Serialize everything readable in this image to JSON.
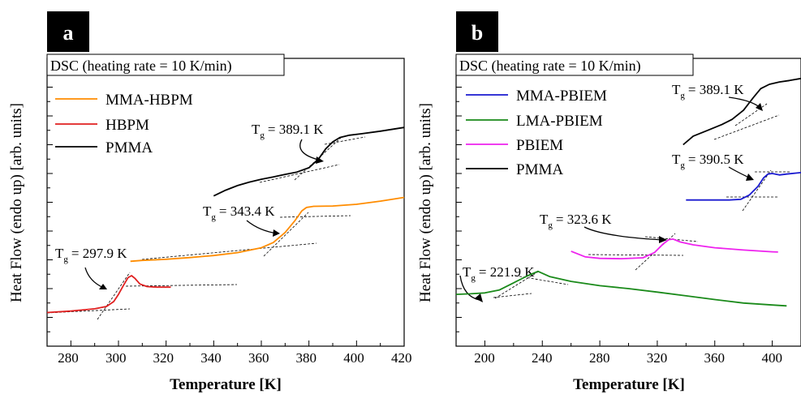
{
  "chart_data": [
    {
      "type": "line",
      "panel_label": "a",
      "box_label": "DSC (heating rate = 10 K/min)",
      "xlabel": "Temperature [K]",
      "ylabel": "Heat Flow (endo up) [arb. units]",
      "xlim": [
        270,
        420
      ],
      "xticks": [
        280,
        300,
        320,
        340,
        360,
        380,
        400,
        420
      ],
      "ylim": [
        0,
        10
      ],
      "legend_position": "top-left",
      "series": [
        {
          "name": "MMA-HBPM",
          "color": "#ff8c00",
          "points": [
            [
              305,
              2.95
            ],
            [
              310,
              2.98
            ],
            [
              320,
              3.02
            ],
            [
              330,
              3.08
            ],
            [
              340,
              3.15
            ],
            [
              350,
              3.25
            ],
            [
              360,
              3.42
            ],
            [
              365,
              3.6
            ],
            [
              370,
              3.95
            ],
            [
              374,
              4.35
            ],
            [
              377,
              4.7
            ],
            [
              379,
              4.82
            ],
            [
              382,
              4.86
            ],
            [
              390,
              4.87
            ],
            [
              400,
              4.93
            ],
            [
              410,
              5.04
            ],
            [
              420,
              5.17
            ]
          ]
        },
        {
          "name": "HBPM",
          "color": "#e02020",
          "points": [
            [
              270,
              1.17
            ],
            [
              280,
              1.22
            ],
            [
              290,
              1.3
            ],
            [
              295,
              1.38
            ],
            [
              298,
              1.55
            ],
            [
              300,
              1.8
            ],
            [
              302,
              2.1
            ],
            [
              304,
              2.38
            ],
            [
              305.5,
              2.45
            ],
            [
              307,
              2.35
            ],
            [
              309,
              2.16
            ],
            [
              312,
              2.07
            ],
            [
              316,
              2.05
            ],
            [
              322,
              2.05
            ]
          ]
        },
        {
          "name": "PMMA",
          "color": "#000000",
          "points": [
            [
              340,
              5.22
            ],
            [
              345,
              5.42
            ],
            [
              350,
              5.58
            ],
            [
              355,
              5.7
            ],
            [
              360,
              5.8
            ],
            [
              365,
              5.88
            ],
            [
              370,
              5.97
            ],
            [
              375,
              6.05
            ],
            [
              380,
              6.2
            ],
            [
              384,
              6.5
            ],
            [
              387,
              6.85
            ],
            [
              390,
              7.1
            ],
            [
              393,
              7.25
            ],
            [
              397,
              7.33
            ],
            [
              402,
              7.38
            ],
            [
              410,
              7.47
            ],
            [
              420,
              7.6
            ]
          ]
        }
      ],
      "annotations": [
        {
          "label": "T",
          "sub": "g",
          "value": "= 297.9 K"
        },
        {
          "label": "T",
          "sub": "g",
          "value": "= 343.4 K"
        },
        {
          "label": "T",
          "sub": "g",
          "value": "= 389.1 K"
        }
      ]
    },
    {
      "type": "line",
      "panel_label": "b",
      "box_label": "DSC (heating rate = 10 K/min)",
      "xlabel": "Temperature [K]",
      "ylabel": "Heat Flow (endo up) [arb. units]",
      "xlim": [
        180,
        420
      ],
      "xticks": [
        200,
        240,
        280,
        320,
        360,
        400
      ],
      "ylim": [
        0,
        10
      ],
      "legend_position": "top-left",
      "series": [
        {
          "name": "MMA-PBIEM",
          "color": "#1a1ad0",
          "points": [
            [
              340,
              5.08
            ],
            [
              360,
              5.08
            ],
            [
              370,
              5.08
            ],
            [
              378,
              5.1
            ],
            [
              384,
              5.25
            ],
            [
              390,
              5.55
            ],
            [
              394,
              5.85
            ],
            [
              397,
              5.98
            ],
            [
              400,
              6.0
            ],
            [
              405,
              5.95
            ],
            [
              410,
              5.98
            ],
            [
              420,
              6.03
            ]
          ]
        },
        {
          "name": "LMA-PBIEM",
          "color": "#1a8a1a",
          "points": [
            [
              180,
              1.8
            ],
            [
              190,
              1.82
            ],
            [
              200,
              1.85
            ],
            [
              210,
              1.95
            ],
            [
              220,
              2.2
            ],
            [
              230,
              2.45
            ],
            [
              237,
              2.6
            ],
            [
              245,
              2.42
            ],
            [
              260,
              2.25
            ],
            [
              280,
              2.1
            ],
            [
              300,
              2.0
            ],
            [
              320,
              1.88
            ],
            [
              340,
              1.75
            ],
            [
              360,
              1.62
            ],
            [
              380,
              1.5
            ],
            [
              400,
              1.43
            ],
            [
              410,
              1.4
            ]
          ]
        },
        {
          "name": "PBIEM",
          "color": "#ee22ee",
          "points": [
            [
              260,
              3.3
            ],
            [
              270,
              3.1
            ],
            [
              280,
              3.05
            ],
            [
              295,
              3.04
            ],
            [
              310,
              3.07
            ],
            [
              318,
              3.25
            ],
            [
              324,
              3.55
            ],
            [
              328,
              3.7
            ],
            [
              331,
              3.72
            ],
            [
              336,
              3.62
            ],
            [
              345,
              3.52
            ],
            [
              360,
              3.42
            ],
            [
              380,
              3.34
            ],
            [
              400,
              3.28
            ],
            [
              404,
              3.27
            ]
          ]
        },
        {
          "name": "PMMA",
          "color": "#000000",
          "points": [
            [
              338,
              7.0
            ],
            [
              345,
              7.3
            ],
            [
              355,
              7.5
            ],
            [
              365,
              7.7
            ],
            [
              372,
              7.88
            ],
            [
              380,
              8.2
            ],
            [
              387,
              8.65
            ],
            [
              392,
              8.95
            ],
            [
              398,
              9.1
            ],
            [
              405,
              9.18
            ],
            [
              412,
              9.23
            ],
            [
              420,
              9.3
            ]
          ]
        }
      ],
      "annotations": [
        {
          "label": "T",
          "sub": "g",
          "value": "= 221.9 K"
        },
        {
          "label": "T",
          "sub": "g",
          "value": "= 323.6 K"
        },
        {
          "label": "T",
          "sub": "g",
          "value": "= 389.1 K"
        },
        {
          "label": "T",
          "sub": "g",
          "value": "= 390.5 K"
        }
      ]
    }
  ]
}
